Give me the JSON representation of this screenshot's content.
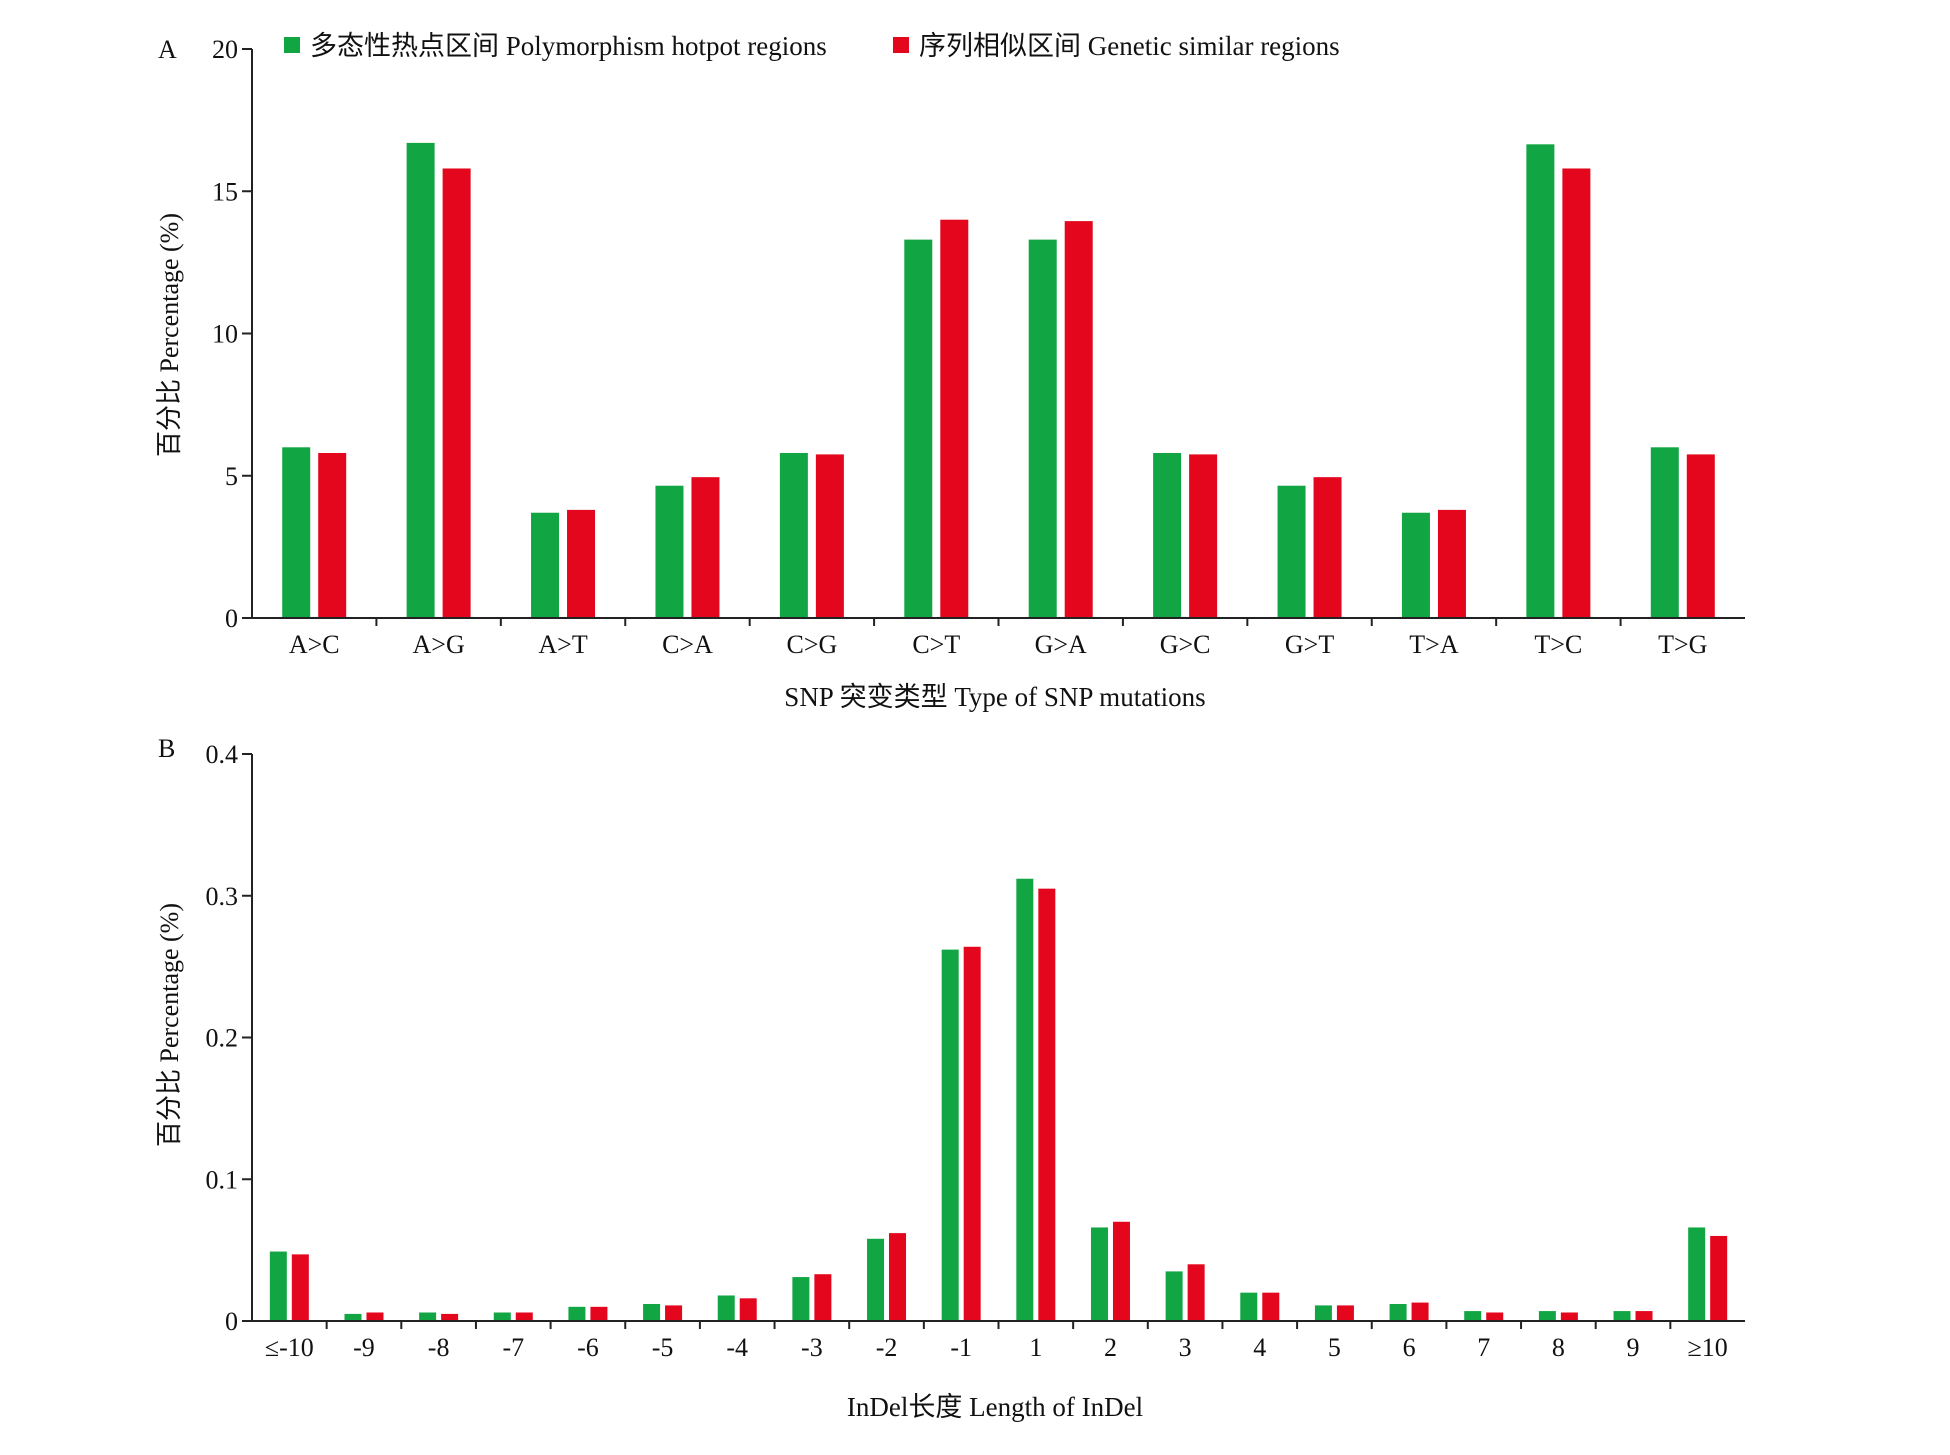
{
  "legend": {
    "items": [
      {
        "label": "多态性热点区间 Polymorphism hotpot regions",
        "color": "#12a543"
      },
      {
        "label": "序列相似区间 Genetic similar regions",
        "color": "#e3061c"
      }
    ],
    "placement": "top"
  },
  "chart_data": [
    {
      "panel_label": "A",
      "type": "bar",
      "xlabel": "SNP 突变类型 Type of SNP mutations",
      "ylabel": "百分比 Percentage (%)",
      "ylim": [
        0,
        20
      ],
      "yticks": [
        "0",
        "5",
        "10",
        "15",
        "20"
      ],
      "ytick_values": [
        0,
        5,
        10,
        15,
        20
      ],
      "grid": false,
      "categories": [
        "A>C",
        "A>G",
        "A>T",
        "C>A",
        "C>G",
        "C>T",
        "G>A",
        "G>C",
        "G>T",
        "T>A",
        "T>C",
        "T>G"
      ],
      "series": [
        {
          "name": "多态性热点区间 Polymorphism hotpot regions",
          "color": "#12a543",
          "values": [
            6.0,
            16.7,
            3.7,
            4.65,
            5.8,
            13.3,
            13.3,
            5.8,
            4.65,
            3.7,
            16.65,
            6.0
          ]
        },
        {
          "name": "序列相似区间 Genetic similar regions",
          "color": "#e3061c",
          "values": [
            5.8,
            15.8,
            3.8,
            4.95,
            5.75,
            14.0,
            13.95,
            5.75,
            4.95,
            3.8,
            15.8,
            5.75
          ]
        }
      ]
    },
    {
      "panel_label": "B",
      "type": "bar",
      "xlabel": "InDel长度 Length of InDel",
      "ylabel": "百分比 Percentage (%)",
      "ylim": [
        0,
        0.4
      ],
      "yticks": [
        "0",
        "0.1",
        "0.2",
        "0.3",
        "0.4"
      ],
      "ytick_values": [
        0,
        0.1,
        0.2,
        0.3,
        0.4
      ],
      "grid": false,
      "categories": [
        "≤-10",
        "-9",
        "-8",
        "-7",
        "-6",
        "-5",
        "-4",
        "-3",
        "-2",
        "-1",
        "1",
        "2",
        "3",
        "4",
        "5",
        "6",
        "7",
        "8",
        "9",
        "≥10"
      ],
      "series": [
        {
          "name": "多态性热点区间 Polymorphism hotpot regions",
          "color": "#12a543",
          "values": [
            0.049,
            0.005,
            0.006,
            0.006,
            0.01,
            0.012,
            0.018,
            0.031,
            0.058,
            0.262,
            0.312,
            0.066,
            0.035,
            0.02,
            0.011,
            0.012,
            0.007,
            0.007,
            0.007,
            0.066
          ]
        },
        {
          "name": "序列相似区间 Genetic similar regions",
          "color": "#e3061c",
          "values": [
            0.047,
            0.006,
            0.005,
            0.006,
            0.01,
            0.011,
            0.016,
            0.033,
            0.062,
            0.264,
            0.305,
            0.07,
            0.04,
            0.02,
            0.011,
            0.013,
            0.006,
            0.006,
            0.007,
            0.06
          ]
        }
      ]
    }
  ]
}
